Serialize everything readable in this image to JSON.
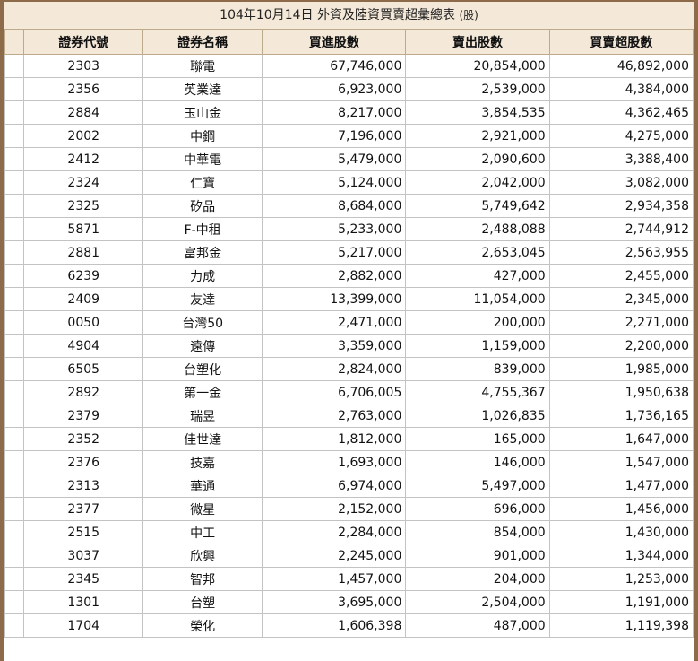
{
  "title": "104年10月14日 外資及陸資買賣超彙總表",
  "unit": "(股)",
  "columns": [
    "證券代號",
    "證券名稱",
    "買進股數",
    "賣出股數",
    "買賣超股數"
  ],
  "rows": [
    {
      "code": "2303",
      "name": "聯電",
      "buy": "67,746,000",
      "sell": "20,854,000",
      "net": "46,892,000"
    },
    {
      "code": "2356",
      "name": "英業達",
      "buy": "6,923,000",
      "sell": "2,539,000",
      "net": "4,384,000"
    },
    {
      "code": "2884",
      "name": "玉山金",
      "buy": "8,217,000",
      "sell": "3,854,535",
      "net": "4,362,465"
    },
    {
      "code": "2002",
      "name": "中鋼",
      "buy": "7,196,000",
      "sell": "2,921,000",
      "net": "4,275,000"
    },
    {
      "code": "2412",
      "name": "中華電",
      "buy": "5,479,000",
      "sell": "2,090,600",
      "net": "3,388,400"
    },
    {
      "code": "2324",
      "name": "仁寶",
      "buy": "5,124,000",
      "sell": "2,042,000",
      "net": "3,082,000"
    },
    {
      "code": "2325",
      "name": "矽品",
      "buy": "8,684,000",
      "sell": "5,749,642",
      "net": "2,934,358"
    },
    {
      "code": "5871",
      "name": "F-中租",
      "buy": "5,233,000",
      "sell": "2,488,088",
      "net": "2,744,912"
    },
    {
      "code": "2881",
      "name": "富邦金",
      "buy": "5,217,000",
      "sell": "2,653,045",
      "net": "2,563,955"
    },
    {
      "code": "6239",
      "name": "力成",
      "buy": "2,882,000",
      "sell": "427,000",
      "net": "2,455,000"
    },
    {
      "code": "2409",
      "name": "友達",
      "buy": "13,399,000",
      "sell": "11,054,000",
      "net": "2,345,000"
    },
    {
      "code": "0050",
      "name": "台灣50",
      "buy": "2,471,000",
      "sell": "200,000",
      "net": "2,271,000"
    },
    {
      "code": "4904",
      "name": "遠傳",
      "buy": "3,359,000",
      "sell": "1,159,000",
      "net": "2,200,000"
    },
    {
      "code": "6505",
      "name": "台塑化",
      "buy": "2,824,000",
      "sell": "839,000",
      "net": "1,985,000"
    },
    {
      "code": "2892",
      "name": "第一金",
      "buy": "6,706,005",
      "sell": "4,755,367",
      "net": "1,950,638"
    },
    {
      "code": "2379",
      "name": "瑞昱",
      "buy": "2,763,000",
      "sell": "1,026,835",
      "net": "1,736,165"
    },
    {
      "code": "2352",
      "name": "佳世達",
      "buy": "1,812,000",
      "sell": "165,000",
      "net": "1,647,000"
    },
    {
      "code": "2376",
      "name": "技嘉",
      "buy": "1,693,000",
      "sell": "146,000",
      "net": "1,547,000"
    },
    {
      "code": "2313",
      "name": "華通",
      "buy": "6,974,000",
      "sell": "5,497,000",
      "net": "1,477,000"
    },
    {
      "code": "2377",
      "name": "微星",
      "buy": "2,152,000",
      "sell": "696,000",
      "net": "1,456,000"
    },
    {
      "code": "2515",
      "name": "中工",
      "buy": "2,284,000",
      "sell": "854,000",
      "net": "1,430,000"
    },
    {
      "code": "3037",
      "name": "欣興",
      "buy": "2,245,000",
      "sell": "901,000",
      "net": "1,344,000"
    },
    {
      "code": "2345",
      "name": "智邦",
      "buy": "1,457,000",
      "sell": "204,000",
      "net": "1,253,000"
    },
    {
      "code": "1301",
      "name": "台塑",
      "buy": "3,695,000",
      "sell": "2,504,000",
      "net": "1,191,000"
    },
    {
      "code": "1704",
      "name": "榮化",
      "buy": "1,606,398",
      "sell": "487,000",
      "net": "1,119,398"
    }
  ]
}
